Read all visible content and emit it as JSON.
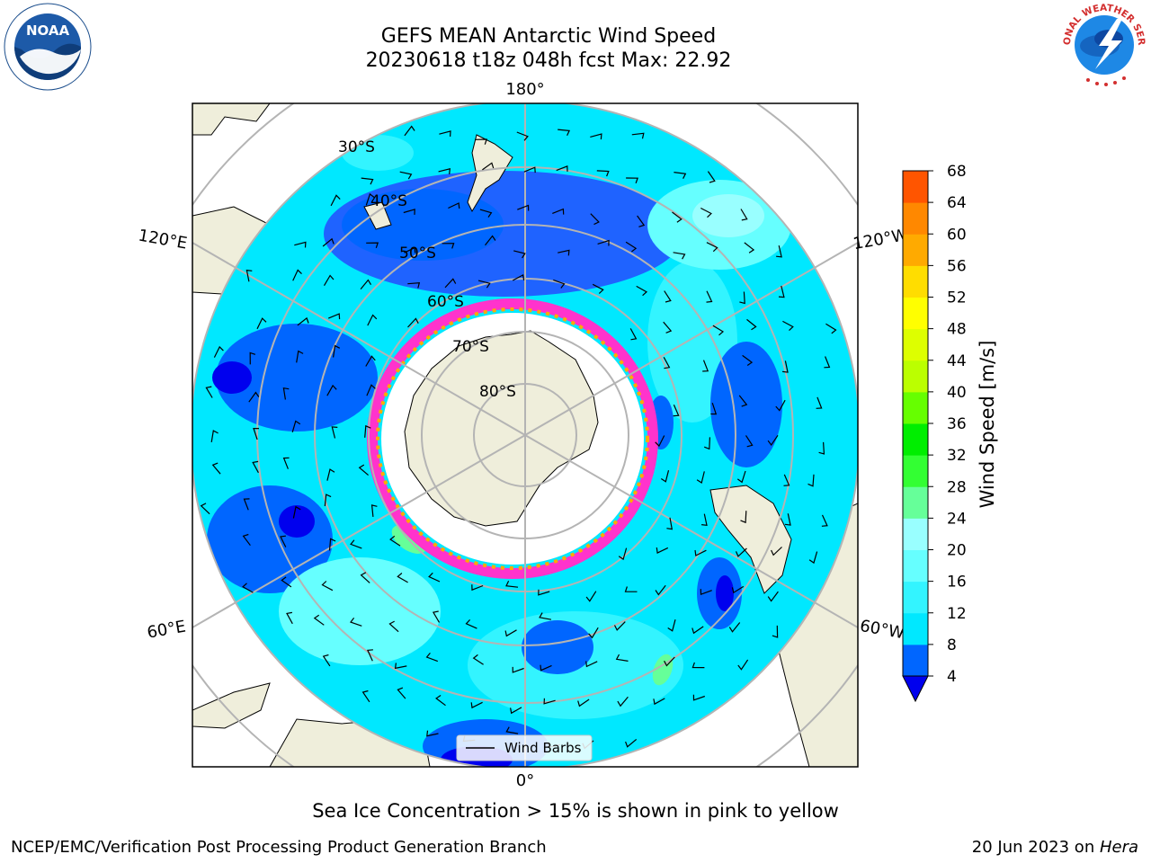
{
  "header": {
    "title_line1": "GEFS MEAN Antarctic Wind Speed",
    "title_line2": "20230618 t18z 048h fcst   Max: 22.92"
  },
  "logos": {
    "noaa_text": "NOAA",
    "nws_ring_text": "NATIONAL WEATHER SERVICE"
  },
  "map": {
    "lon_labels": {
      "top": "180°",
      "bottom": "0°",
      "upper_left": "120°E",
      "upper_right": "120°W",
      "lower_left": "60°E",
      "lower_right": "60°W"
    },
    "lat_labels": [
      "30°S",
      "40°S",
      "50°S",
      "60°S",
      "70°S",
      "80°S"
    ],
    "legend_label": "Wind Barbs"
  },
  "colorbar": {
    "label": "Wind Speed [m/s]",
    "ticks": [
      "4",
      "8",
      "12",
      "16",
      "20",
      "24",
      "28",
      "32",
      "36",
      "40",
      "44",
      "48",
      "52",
      "56",
      "60",
      "64",
      "68"
    ],
    "colors": [
      "#0066ff",
      "#00e8ff",
      "#33f4ff",
      "#66ffff",
      "#99ffff",
      "#66ff99",
      "#33ff33",
      "#00ee00",
      "#66ff00",
      "#bbff00",
      "#ddff00",
      "#ffff00",
      "#ffdd00",
      "#ffaa00",
      "#ff8800",
      "#ff5500",
      "#ff2200",
      "#ff0000"
    ],
    "under_color": "#0000ee"
  },
  "chart_data": {
    "type": "heatmap",
    "title": "GEFS MEAN Antarctic Wind Speed",
    "subtitle": "20230618 t18z 048h fcst   Max: 22.92",
    "colorbar_label": "Wind Speed [m/s]",
    "colorbar_range": [
      4,
      68
    ],
    "colorbar_step": 4,
    "max_value": 22.92,
    "projection": "south polar stereographic",
    "latitude_circles": [
      "30°S",
      "40°S",
      "50°S",
      "60°S",
      "70°S",
      "80°S"
    ],
    "meridians": [
      "0°",
      "60°W",
      "120°W",
      "180°",
      "120°E",
      "60°E"
    ],
    "legend": [
      "Wind Barbs"
    ]
  },
  "footer": {
    "note": "Sea Ice Concentration > 15% is shown in pink to yellow",
    "credit": "NCEP/EMC/Verification Post Processing Product Generation Branch",
    "date_prefix": "20 Jun 2023 on ",
    "host": "Hera"
  }
}
